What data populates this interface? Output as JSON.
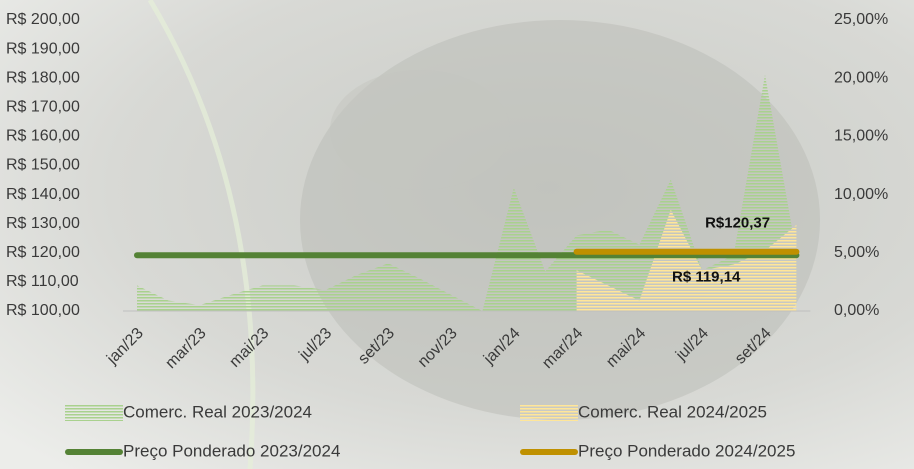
{
  "chart_data": {
    "type": "area-line",
    "categories": [
      "jan/23",
      null,
      "mar/23",
      null,
      "mai/23",
      null,
      "jul/23",
      null,
      "set/23",
      null,
      "nov/23",
      null,
      "jan/24",
      null,
      "mar/24",
      null,
      "mai/24",
      null,
      "jul/24",
      null,
      "set/24",
      null
    ],
    "ylim": [
      100,
      200
    ],
    "yticks": [
      {
        "value": 100,
        "label": "R$ 100,00"
      },
      {
        "value": 110,
        "label": "R$ 110,00"
      },
      {
        "value": 120,
        "label": "R$ 120,00"
      },
      {
        "value": 130,
        "label": "R$ 130,00"
      },
      {
        "value": 140,
        "label": "R$ 140,00"
      },
      {
        "value": 150,
        "label": "R$ 150,00"
      },
      {
        "value": 160,
        "label": "R$ 160,00"
      },
      {
        "value": 170,
        "label": "R$ 170,00"
      },
      {
        "value": 180,
        "label": "R$ 180,00"
      },
      {
        "value": 190,
        "label": "R$ 190,00"
      },
      {
        "value": 200,
        "label": "R$ 200,00"
      }
    ],
    "y2lim": [
      0,
      25
    ],
    "y2ticks": [
      {
        "value": 0,
        "label": "0,00%"
      },
      {
        "value": 5,
        "label": "5,00%"
      },
      {
        "value": 10,
        "label": "10,00%"
      },
      {
        "value": 15,
        "label": "15,00%"
      },
      {
        "value": 20,
        "label": "20,00%"
      },
      {
        "value": 25,
        "label": "25,00%"
      }
    ],
    "series": [
      {
        "name": "Comerc. Real 2023/2024",
        "kind": "area",
        "axis": "y2",
        "color": "#a9d18e",
        "values": [
          2.2,
          0.9,
          0.5,
          1.4,
          2.2,
          2.2,
          1.8,
          3.1,
          4.1,
          2.8,
          1.4,
          0,
          10.6,
          3.4,
          6.5,
          7.0,
          5.7,
          11.3,
          3.5,
          4.8,
          20.3,
          5.0
        ]
      },
      {
        "name": "Comerc. Real 2024/2025",
        "kind": "area",
        "axis": "y2",
        "color": "#ffe699",
        "values": [
          null,
          null,
          null,
          null,
          null,
          null,
          null,
          null,
          null,
          null,
          null,
          null,
          null,
          null,
          3.5,
          2.2,
          0.9,
          8.7,
          3.5,
          4.0,
          5.2,
          7.4
        ]
      },
      {
        "name": "Preço Ponderado 2023/2024",
        "kind": "line",
        "color": "#548235",
        "values": [
          119.14,
          119.14,
          119.14,
          119.14,
          119.14,
          119.14,
          119.14,
          119.14,
          119.14,
          119.14,
          119.14,
          119.14,
          119.14,
          119.14,
          119.14,
          119.14,
          119.14,
          119.14,
          119.14,
          119.14,
          119.14,
          119.14
        ],
        "value_labels": [
          null,
          null,
          null,
          null,
          null,
          null,
          null,
          null,
          null,
          null,
          null,
          null,
          null,
          null,
          null,
          null,
          null,
          null,
          "R$ 119,14",
          null,
          null,
          null
        ]
      },
      {
        "name": "Preço Ponderado 2024/2025",
        "kind": "line",
        "color": "#bf9000",
        "values": [
          null,
          null,
          null,
          null,
          null,
          null,
          null,
          null,
          null,
          null,
          null,
          null,
          null,
          null,
          120.37,
          120.37,
          120.37,
          120.37,
          120.37,
          120.37,
          120.37,
          120.37
        ],
        "value_labels": [
          null,
          null,
          null,
          null,
          null,
          null,
          null,
          null,
          null,
          null,
          null,
          null,
          null,
          null,
          null,
          null,
          null,
          null,
          null,
          "R$120,37",
          null,
          null
        ]
      }
    ]
  }
}
